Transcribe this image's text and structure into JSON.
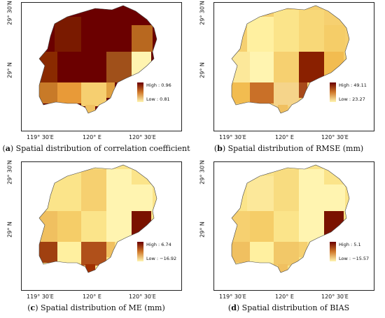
{
  "axes": {
    "lat_top": "29° 30′N",
    "lat_bottom": "29° N",
    "lon_left": "119° 30′E",
    "lon_mid": "120° E",
    "lon_right": "120° 30′E"
  },
  "panels": [
    {
      "letter": "(a)",
      "caption": " Spatial distribution of correlation coefficient",
      "legend_high": "High : 0.96",
      "legend_low": "Low : 0.81",
      "colors": [
        "#7a1a00",
        "#6b0000",
        "#6b0000",
        "#b8681f",
        "#8a2a00",
        "#6b0000",
        "#6b0000",
        "#a0501a",
        "#fff4b0",
        "#c87a28",
        "#e89a38",
        "#f6cf70",
        "#e0a040",
        "#f0c060"
      ]
    },
    {
      "letter": "(b)",
      "caption": " Spatial distribution of RMSE (mm)",
      "legend_high": "High : 49.11",
      "legend_low": "Low : 23.27",
      "colors": [
        "#fff0a0",
        "#fbe48a",
        "#f8d878",
        "#f5cd68",
        "#fce89a",
        "#fff4b0",
        "#f6d070",
        "#8a2000",
        "#f2bc50",
        "#f2bc50",
        "#c97028",
        "#f5d48a",
        "#a84a1a",
        "#f0c060"
      ]
    },
    {
      "letter": "(c)",
      "caption": " Spatial distribution of ME (mm)",
      "legend_high": "High : 6.74",
      "legend_low": "Low : −16.92",
      "colors": [
        "#fbe48a",
        "#f6d070",
        "#fff4b0",
        "#fff4b0",
        "#f0c060",
        "#f5cd68",
        "#fbe48a",
        "#fff4b0",
        "#7a1200",
        "#a04010",
        "#fff0a0",
        "#b0501a",
        "#f0c060",
        "#a03000"
      ]
    },
    {
      "letter": "(d)",
      "caption": " Spatial distribution of BIAS",
      "legend_high": "High : 5.1",
      "legend_low": "Low : −15.57",
      "colors": [
        "#fce89a",
        "#f8dc80",
        "#fff4b0",
        "#fff4b0",
        "#f6d070",
        "#f5cd68",
        "#fbe48a",
        "#fff4b0",
        "#7a1200",
        "#f0c060",
        "#fff0a0",
        "#f2c868",
        "#f6d070",
        "#f0c060"
      ]
    }
  ]
}
